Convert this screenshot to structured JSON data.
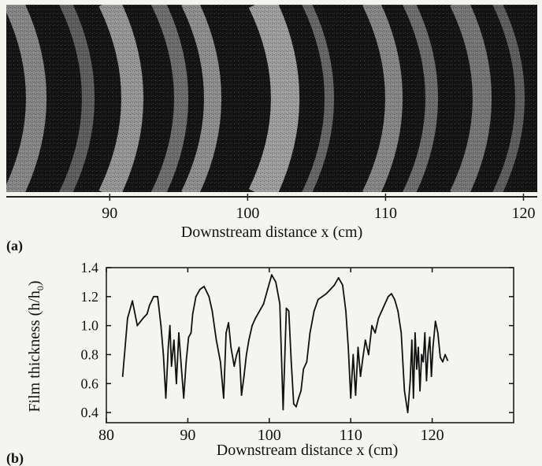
{
  "chart_data": [
    {
      "panel": "(a)",
      "type": "image",
      "xlabel": "Downstream distance  x (cm)",
      "xticks": [
        90,
        100,
        110,
        120
      ],
      "xlim": [
        82.5,
        121
      ]
    },
    {
      "panel": "(b)",
      "type": "line",
      "xlabel": "Downstream distance  x (cm)",
      "ylabel": "Film thickness (h/h",
      "ylabel_sub": "0",
      "ylabel_end": ")",
      "xlim": [
        80,
        130
      ],
      "ylim": [
        0.33,
        1.4
      ],
      "xticks": [
        80,
        90,
        100,
        110,
        120
      ],
      "yticks": [
        0.4,
        0.6,
        0.8,
        1.0,
        1.2,
        1.4
      ],
      "ytick_labels": [
        "0.4",
        "0.6",
        "0.8",
        "1.0",
        "1.2",
        "1.4"
      ],
      "series": [
        {
          "x": [
            82.0,
            82.6,
            83.2,
            83.8,
            84.5,
            85.0,
            85.3,
            85.8,
            86.3,
            86.7,
            87.0,
            87.3,
            87.6,
            87.8,
            88.0,
            88.3,
            88.6,
            88.9,
            89.2,
            89.5,
            89.8,
            90.1,
            90.4,
            90.6,
            91.0,
            91.5,
            92.0,
            92.6,
            93.0,
            93.5,
            94.0,
            94.4,
            94.7,
            95.0,
            95.3,
            95.7,
            96.0,
            96.3,
            96.6,
            96.9,
            97.2,
            97.5,
            97.9,
            98.3,
            98.8,
            99.3,
            99.8,
            100.3,
            100.8,
            101.3,
            101.7,
            102.1,
            102.4,
            102.7,
            103.0,
            103.3,
            103.6,
            103.9,
            104.2,
            104.6,
            105.0,
            105.5,
            106.0,
            106.5,
            107.0,
            107.5,
            108.0,
            108.5,
            109.0,
            109.4,
            109.7,
            110.0,
            110.3,
            110.6,
            110.9,
            111.2,
            111.5,
            111.8,
            112.2,
            112.6,
            113.0,
            113.4,
            113.8,
            114.2,
            114.6,
            115.0,
            115.4,
            115.8,
            116.2,
            116.6,
            117.0,
            117.3,
            117.5,
            117.7,
            117.9,
            118.1,
            118.3,
            118.5,
            118.7,
            118.9,
            119.1,
            119.3,
            119.5,
            119.7,
            119.9,
            120.1,
            120.4,
            120.7,
            121.0,
            121.3,
            121.6,
            121.9
          ],
          "y": [
            0.65,
            1.05,
            1.17,
            1.0,
            1.05,
            1.08,
            1.14,
            1.2,
            1.2,
            1.0,
            0.8,
            0.5,
            0.85,
            1.0,
            0.72,
            0.9,
            0.6,
            0.95,
            0.72,
            0.5,
            0.75,
            0.92,
            0.95,
            1.08,
            1.2,
            1.25,
            1.27,
            1.2,
            1.1,
            0.9,
            0.75,
            0.5,
            0.95,
            1.02,
            0.85,
            0.72,
            0.8,
            0.85,
            0.52,
            0.65,
            0.8,
            0.9,
            1.0,
            1.05,
            1.1,
            1.15,
            1.25,
            1.35,
            1.3,
            1.15,
            0.42,
            1.12,
            1.1,
            0.75,
            0.46,
            0.44,
            0.5,
            0.55,
            0.7,
            0.75,
            0.95,
            1.1,
            1.18,
            1.2,
            1.22,
            1.25,
            1.28,
            1.33,
            1.28,
            1.1,
            0.85,
            0.5,
            0.8,
            0.52,
            0.85,
            0.65,
            0.78,
            0.9,
            0.8,
            1.0,
            0.95,
            1.05,
            1.1,
            1.15,
            1.2,
            1.22,
            1.18,
            1.1,
            0.95,
            0.55,
            0.4,
            0.62,
            0.9,
            0.5,
            0.95,
            0.7,
            0.85,
            0.55,
            0.8,
            0.75,
            0.95,
            0.62,
            0.82,
            0.92,
            0.65,
            0.85,
            1.03,
            0.95,
            0.78,
            0.75,
            0.8,
            0.76
          ]
        }
      ],
      "grid": false,
      "legend": "none"
    }
  ],
  "page": {
    "colors": {
      "background": "#f4f4f1",
      "photo_dark": "#141414",
      "photo_light": "#b5b5b5",
      "ink": "#111111"
    }
  }
}
